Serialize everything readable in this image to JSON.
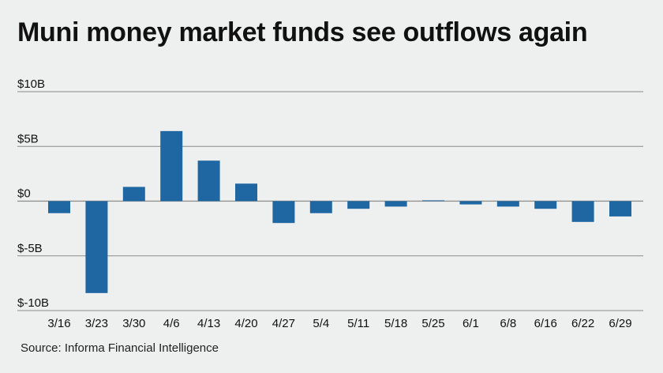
{
  "title": "Muni money market funds see outflows again",
  "source": "Source: Informa Financial Intelligence",
  "chart_data": {
    "type": "bar",
    "title": "Muni money market funds see outflows again",
    "xlabel": "",
    "ylabel": "",
    "categories": [
      "3/16",
      "3/23",
      "3/30",
      "4/6",
      "4/13",
      "4/20",
      "4/27",
      "5/4",
      "5/11",
      "5/18",
      "5/25",
      "6/1",
      "6/8",
      "6/16",
      "6/22",
      "6/29"
    ],
    "values": [
      -1.1,
      -8.4,
      1.3,
      6.4,
      3.7,
      1.6,
      -2.0,
      -1.1,
      -0.7,
      -0.5,
      0.05,
      -0.3,
      -0.5,
      -0.7,
      -1.9,
      -1.4
    ],
    "ylim": [
      -10,
      10
    ],
    "yticks": [
      10,
      5,
      0,
      -5,
      -10
    ],
    "ytick_labels": [
      "$10B",
      "$5B",
      "$0",
      "$-5B",
      "$-10B"
    ],
    "grid": true,
    "bar_color": "#1f67a3",
    "grid_color": "#8a8a8a",
    "legend": "none"
  }
}
